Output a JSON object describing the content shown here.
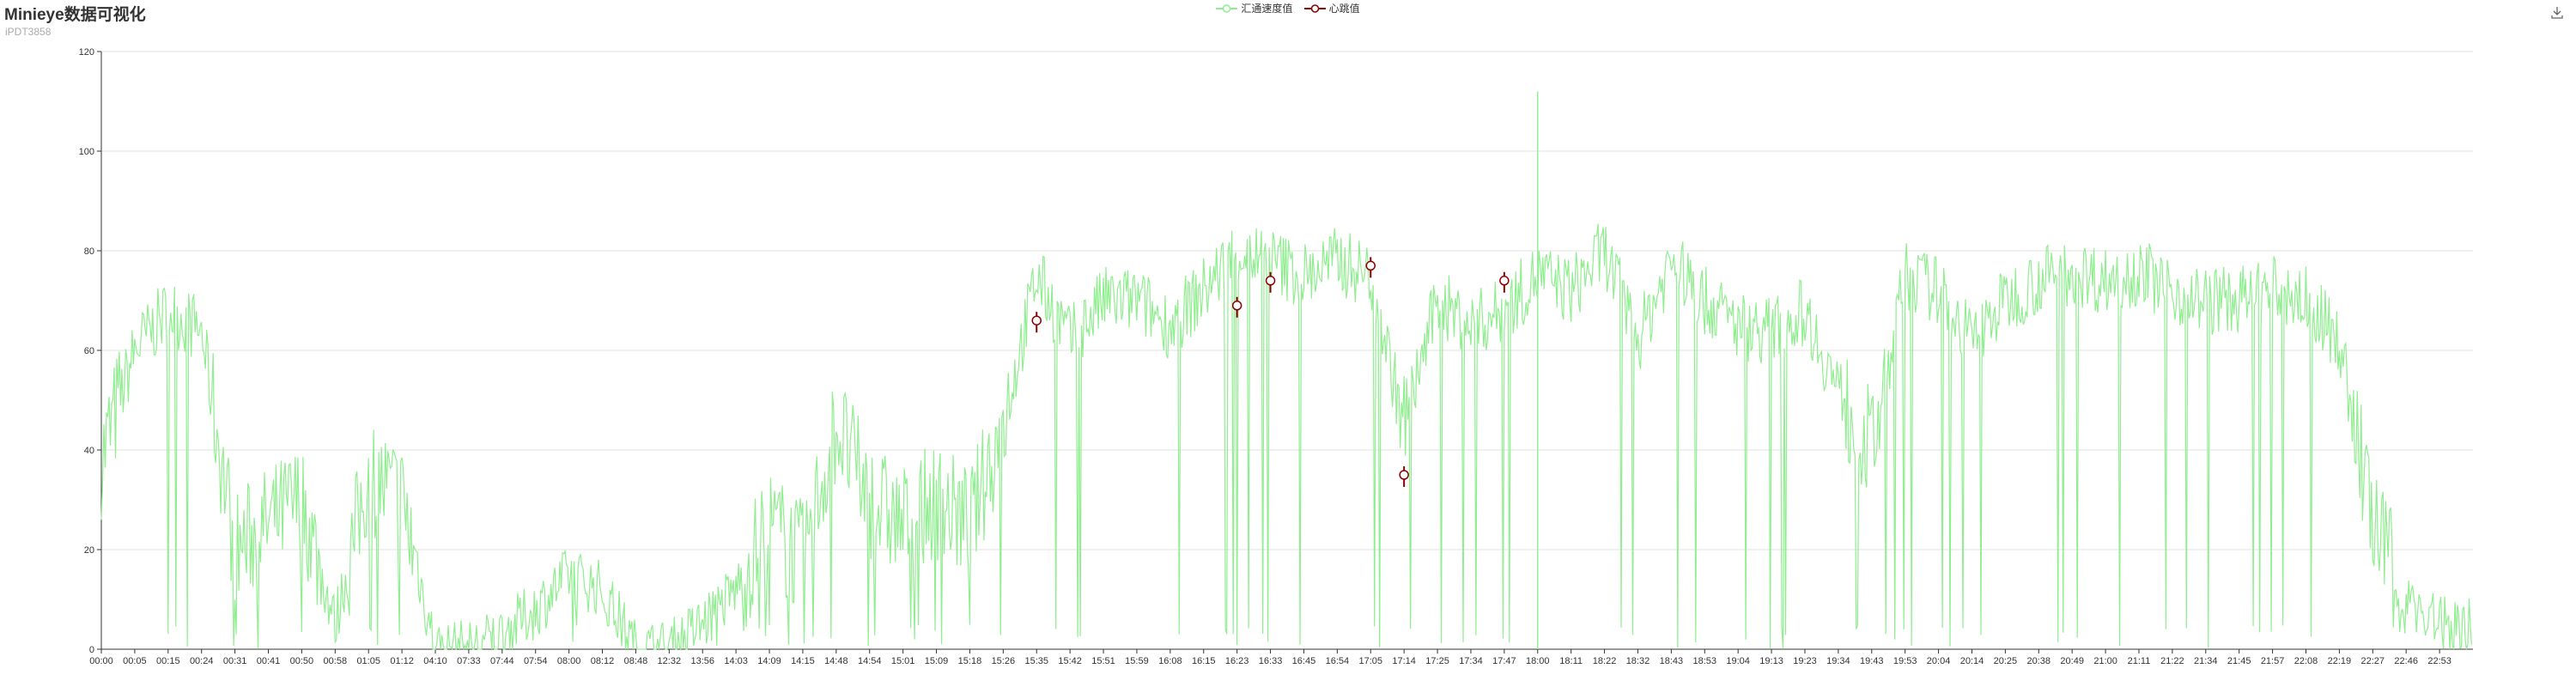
{
  "title": "Minieye数据可视化",
  "subtitle": "iPDT3858",
  "legend": [
    "汇通速度值",
    "心跳值"
  ],
  "toolbox": {
    "icon": "save-as-image-icon"
  },
  "colors": {
    "speed": "#90ee90",
    "heartbeat": "#8b0000",
    "axis": "#333333",
    "grid": "#e0e0e0"
  },
  "chart_data": {
    "type": "line",
    "title": "Minieye数据可视化",
    "subtitle": "iPDT3858",
    "ylim": [
      0,
      120
    ],
    "yticks": [
      0,
      20,
      40,
      60,
      80,
      100,
      120
    ],
    "grid": "horizontal",
    "legend_position": "top-center",
    "categories": [
      "00:00",
      "00:05",
      "00:15",
      "00:24",
      "00:31",
      "00:41",
      "00:50",
      "00:58",
      "01:05",
      "01:12",
      "04:10",
      "07:33",
      "07:44",
      "07:54",
      "08:00",
      "08:12",
      "08:48",
      "12:32",
      "13:56",
      "14:03",
      "14:09",
      "14:15",
      "14:48",
      "14:54",
      "15:01",
      "15:09",
      "15:18",
      "15:26",
      "15:35",
      "15:42",
      "15:51",
      "15:59",
      "16:08",
      "16:15",
      "16:23",
      "16:33",
      "16:45",
      "16:54",
      "17:05",
      "17:14",
      "17:25",
      "17:34",
      "17:47",
      "18:00",
      "18:11",
      "18:22",
      "18:32",
      "18:43",
      "18:53",
      "19:04",
      "19:13",
      "19:23",
      "19:34",
      "19:43",
      "19:53",
      "20:04",
      "20:14",
      "20:25",
      "20:38",
      "20:49",
      "21:00",
      "21:11",
      "21:22",
      "21:34",
      "21:45",
      "21:57",
      "22:08",
      "22:19",
      "22:27",
      "22:46",
      "22:53"
    ],
    "series": [
      {
        "name": "汇通速度值",
        "type": "line",
        "values": [
          38,
          60,
          68,
          64,
          20,
          25,
          30,
          5,
          35,
          30,
          0,
          0,
          3,
          8,
          15,
          12,
          0,
          0,
          5,
          12,
          25,
          18,
          45,
          30,
          25,
          30,
          25,
          45,
          75,
          62,
          70,
          70,
          65,
          72,
          80,
          78,
          75,
          78,
          75,
          45,
          70,
          65,
          68,
          75,
          72,
          80,
          62,
          78,
          70,
          65,
          64,
          68,
          52,
          40,
          75,
          72,
          62,
          70,
          74,
          76,
          74,
          76,
          72,
          70,
          70,
          72,
          70,
          62,
          25,
          10,
          5
        ],
        "spikes": [
          {
            "x": "18:00",
            "y": 112
          }
        ]
      },
      {
        "name": "心跳值",
        "type": "scatter",
        "points": [
          [
            "15:35",
            66
          ],
          [
            "16:23",
            69
          ],
          [
            "16:33",
            74
          ],
          [
            "17:05",
            77
          ],
          [
            "17:14",
            35
          ],
          [
            "17:47",
            74
          ]
        ]
      }
    ]
  }
}
